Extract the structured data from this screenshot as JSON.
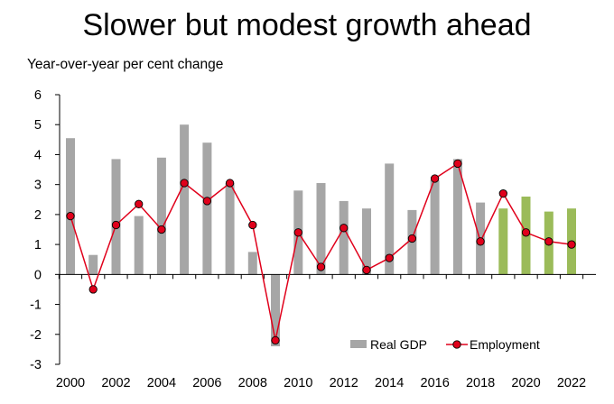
{
  "chart_data": {
    "type": "bar",
    "title": "Slower but modest growth ahead",
    "ylabel": "Year-over-year per cent change",
    "xlabel": "",
    "ylim": [
      -3,
      6
    ],
    "yticks": [
      "6",
      "5",
      "4",
      "3",
      "2",
      "1",
      "0",
      "-1",
      "-2",
      "-3"
    ],
    "ytick_values": [
      6,
      5,
      4,
      3,
      2,
      1,
      0,
      -1,
      -2,
      -3
    ],
    "categories": [
      2000,
      2001,
      2002,
      2003,
      2004,
      2005,
      2006,
      2007,
      2008,
      2009,
      2010,
      2011,
      2012,
      2013,
      2014,
      2015,
      2016,
      2017,
      2018,
      2019,
      2020,
      2021,
      2022
    ],
    "xtick_labels": [
      {
        "year": 2000,
        "label": "2000"
      },
      {
        "year": 2002,
        "label": "2002"
      },
      {
        "year": 2004,
        "label": "2004"
      },
      {
        "year": 2006,
        "label": "2006"
      },
      {
        "year": 2008,
        "label": "2008"
      },
      {
        "year": 2010,
        "label": "2010"
      },
      {
        "year": 2012,
        "label": "2012"
      },
      {
        "year": 2014,
        "label": "2014"
      },
      {
        "year": 2016,
        "label": "2016"
      },
      {
        "year": 2018,
        "label": "2018"
      },
      {
        "year": 2020,
        "label": "2020"
      },
      {
        "year": 2022,
        "label": "2022"
      }
    ],
    "series": [
      {
        "name": "Real GDP",
        "kind": "bar",
        "values": [
          4.55,
          0.65,
          3.85,
          1.95,
          3.9,
          5.0,
          4.4,
          3.05,
          0.75,
          -2.4,
          2.8,
          3.05,
          2.45,
          2.2,
          3.7,
          2.15,
          3.15,
          3.85,
          2.4,
          2.2,
          2.6,
          2.1,
          2.2
        ],
        "forecast_from_index": 19
      },
      {
        "name": "Employment",
        "kind": "line",
        "values": [
          1.95,
          -0.5,
          1.65,
          2.35,
          1.5,
          3.05,
          2.45,
          3.05,
          1.65,
          -2.2,
          1.4,
          0.25,
          1.55,
          0.15,
          0.55,
          1.2,
          3.2,
          3.7,
          1.1,
          2.7,
          1.4,
          1.1,
          1.0
        ]
      }
    ],
    "colors": {
      "gdp_actual": "#a6a6a6",
      "gdp_forecast": "#9bbb59",
      "employment_line": "#e0001b",
      "employment_marker": "#e0001b",
      "employment_marker_edge": "#000000",
      "axis": "#000000"
    },
    "legend": {
      "position": "bottom-right",
      "entries": [
        "Real GDP",
        "Employment"
      ]
    }
  }
}
